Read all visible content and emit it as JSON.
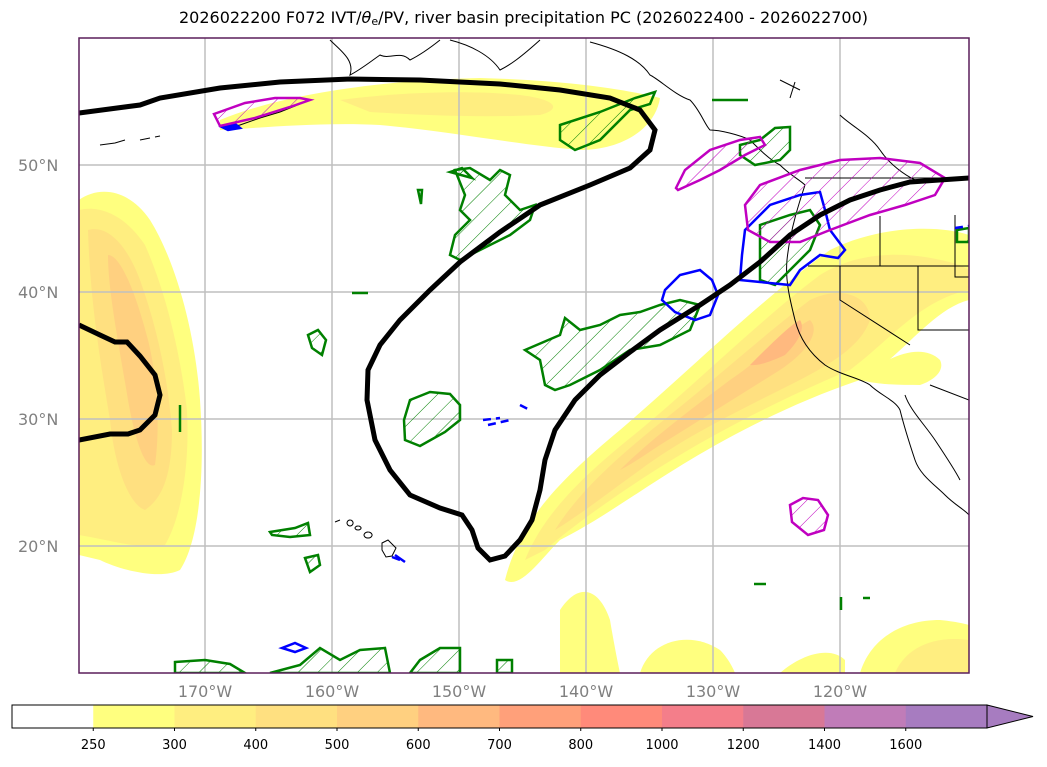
{
  "title": {
    "prefix": "2026022200 F072 IVT/",
    "theta": "θ",
    "theta_sub": "e",
    "suffix": "/PV, river basin precipitation PC (2026022400 - 2026022700)"
  },
  "map": {
    "projection": "PlateCarree",
    "extent_lon": [
      -180,
      -110
    ],
    "extent_lat": [
      10,
      60
    ],
    "lat_labels": [
      "50°N",
      "40°N",
      "30°N",
      "20°N"
    ],
    "lon_labels": [
      "170°W",
      "160°W",
      "150°W",
      "140°W",
      "130°W",
      "120°W"
    ],
    "colors": {
      "frame": "#5a1e5a",
      "grid": "#bfbfbf",
      "pv_contour": "#000000",
      "theta_e_contour": "#008000",
      "blue_contour": "#0000ff",
      "magenta_contour": "#c000c0"
    }
  },
  "colorbar": {
    "levels": [
      "250",
      "300",
      "400",
      "500",
      "600",
      "700",
      "800",
      "1000",
      "1200",
      "1400",
      "1600"
    ],
    "colors": [
      "#ffffff",
      "#ffff7f",
      "#ffee80",
      "#ffe080",
      "#ffd080",
      "#ffb97f",
      "#ffa07a",
      "#ff8a7a",
      "#f47e8a",
      "#d87896",
      "#c07cb8",
      "#a77cc0"
    ]
  }
}
